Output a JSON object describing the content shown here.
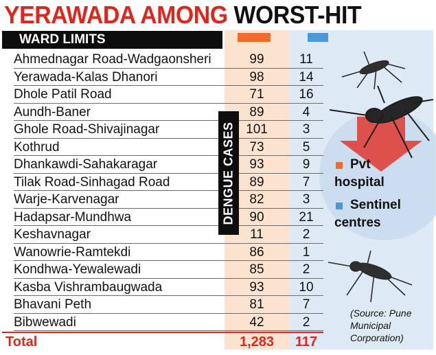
{
  "title": {
    "part1": "YERAWADA AMONG",
    "part2": "WORST-HIT"
  },
  "colors": {
    "accent_red": "#e0251b",
    "pvt_orange": "#f26b2b",
    "sentinel_blue": "#4a98d6"
  },
  "chart_data": {
    "type": "table",
    "header": "WARD LIMITS",
    "column_group_label": "DENGUE CASES",
    "series": [
      {
        "name": "Pvt hospital",
        "values": [
          99,
          98,
          71,
          89,
          101,
          73,
          93,
          89,
          82,
          90,
          11,
          86,
          85,
          93,
          81,
          42
        ]
      },
      {
        "name": "Sentinel centres",
        "values": [
          11,
          14,
          16,
          4,
          3,
          5,
          9,
          7,
          3,
          21,
          2,
          1,
          2,
          10,
          7,
          2
        ]
      }
    ],
    "rows": [
      {
        "ward": "Ahmednagar Road-Wadgaonsheri",
        "pvt": "99",
        "sentinel": "11"
      },
      {
        "ward": "Yerawada-Kalas Dhanori",
        "pvt": "98",
        "sentinel": "14"
      },
      {
        "ward": "Dhole Patil Road",
        "pvt": "71",
        "sentinel": "16"
      },
      {
        "ward": "Aundh-Baner",
        "pvt": "89",
        "sentinel": "4"
      },
      {
        "ward": "Ghole Road-Shivajinagar",
        "pvt": "101",
        "sentinel": "3"
      },
      {
        "ward": "Kothrud",
        "pvt": "73",
        "sentinel": "5"
      },
      {
        "ward": "Dhankawdi-Sahakaragar",
        "pvt": "93",
        "sentinel": "9"
      },
      {
        "ward": "Tilak Road-Sinhagad Road",
        "pvt": "89",
        "sentinel": "7"
      },
      {
        "ward": "Warje-Karvenagar",
        "pvt": "82",
        "sentinel": "3"
      },
      {
        "ward": "Hadapsar-Mundhwa",
        "pvt": "90",
        "sentinel": "21"
      },
      {
        "ward": "Keshavnagar",
        "pvt": "11",
        "sentinel": "2"
      },
      {
        "ward": "Wanowrie-Ramtekdi",
        "pvt": "86",
        "sentinel": "1"
      },
      {
        "ward": "Kondhwa-Yewalewadi",
        "pvt": "85",
        "sentinel": "2"
      },
      {
        "ward": "Kasba Vishrambaugwada",
        "pvt": "93",
        "sentinel": "10"
      },
      {
        "ward": "Bhavani Peth",
        "pvt": "81",
        "sentinel": "7"
      },
      {
        "ward": "Bibwewadi",
        "pvt": "42",
        "sentinel": "2"
      }
    ],
    "total": {
      "label": "Total",
      "pvt": "1,283",
      "sentinel": "117"
    },
    "legend": [
      {
        "line1": "Pvt",
        "line2": "hospital",
        "color": "#f26b2b"
      },
      {
        "line1": "Sentinel",
        "line2": "centres",
        "color": "#4a98d6"
      }
    ],
    "source": "(Source: Pune Municipal Corporation)"
  }
}
